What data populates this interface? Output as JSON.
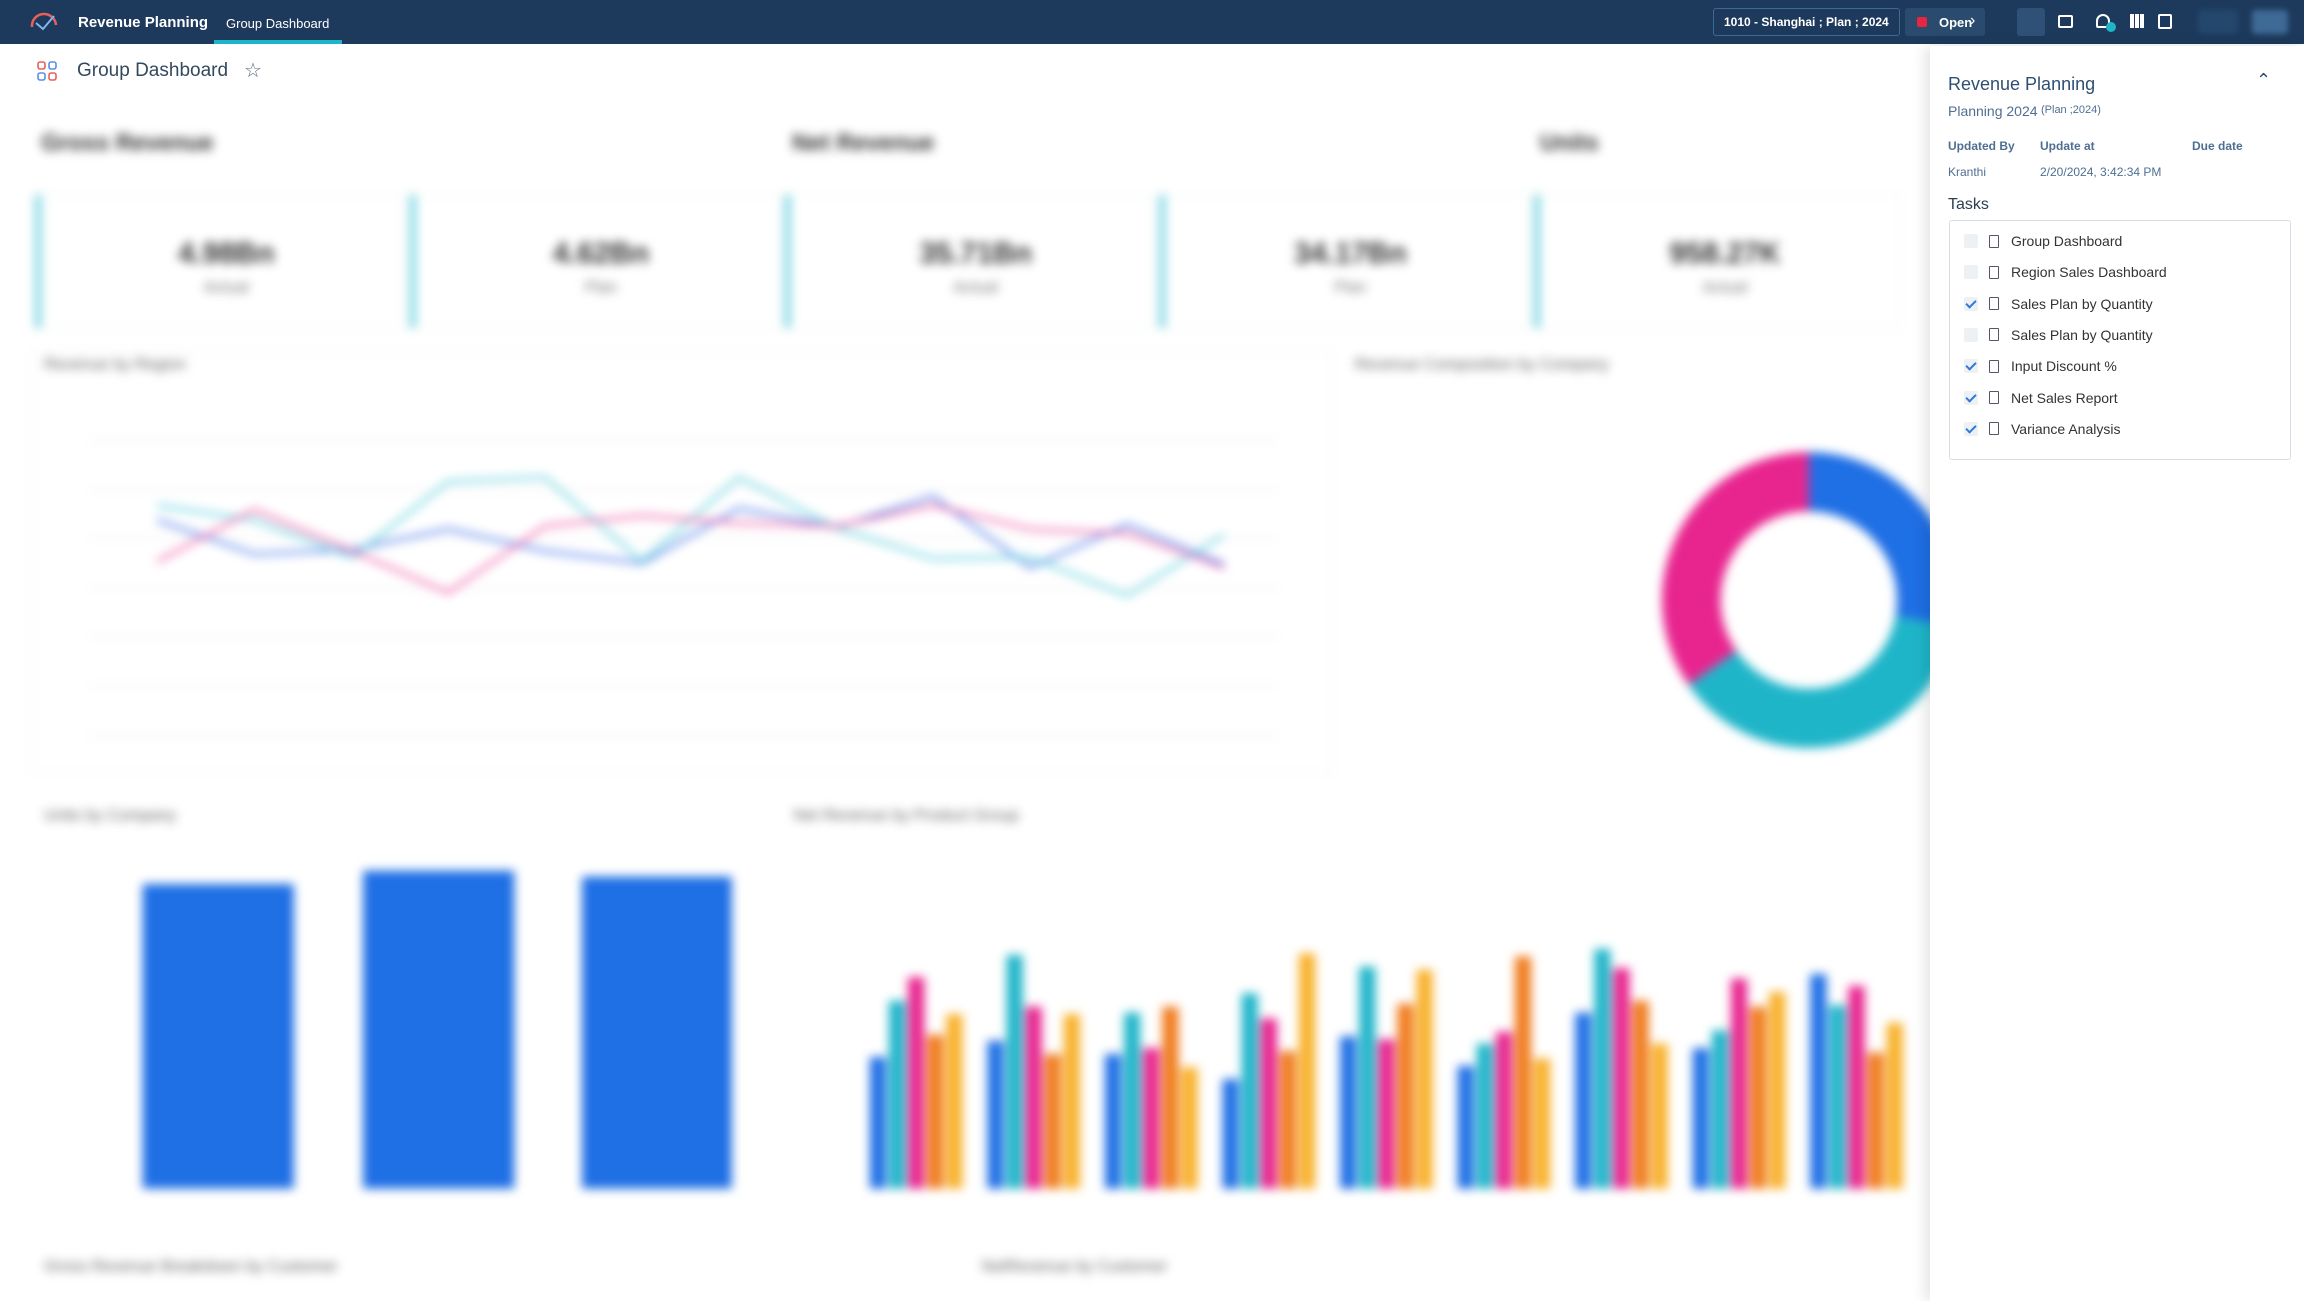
{
  "header": {
    "app_title": "Revenue Planning",
    "tab": "Group Dashboard",
    "context": "1010 - Shanghai ; Plan ; 2024",
    "status": "Open"
  },
  "page": {
    "title": "Group Dashboard"
  },
  "kpis": {
    "sections": [
      "Gross Revenue",
      "Net Revenue",
      "Units"
    ],
    "cards": [
      {
        "value": "4.98Bn",
        "label": "Actual"
      },
      {
        "value": "4.62Bn",
        "label": "Plan"
      },
      {
        "value": "35.71Bn",
        "label": "Actual"
      },
      {
        "value": "34.17Bn",
        "label": "Plan"
      },
      {
        "value": "958.27K",
        "label": "Actual"
      }
    ]
  },
  "panel": {
    "title": "Revenue Planning",
    "subtitle": "Planning 2024",
    "subtitle_note": "(Plan ;2024)",
    "fields": [
      {
        "label": "Updated By",
        "value": "Kranthi"
      },
      {
        "label": "Update at",
        "value": "2/20/2024, 3:42:34 PM"
      },
      {
        "label": "Due date"
      }
    ],
    "tasks_title": "Tasks",
    "tasks": [
      {
        "name": "Group Dashboard",
        "done": false
      },
      {
        "name": "Region Sales Dashboard",
        "done": false
      },
      {
        "name": "Sales Plan by Quantity",
        "done": true
      },
      {
        "name": "Sales Plan by Quantity",
        "done": false
      },
      {
        "name": "Input Discount %",
        "done": true
      },
      {
        "name": "Net Sales Report",
        "done": true
      },
      {
        "name": "Variance Analysis",
        "done": true
      }
    ]
  }
}
